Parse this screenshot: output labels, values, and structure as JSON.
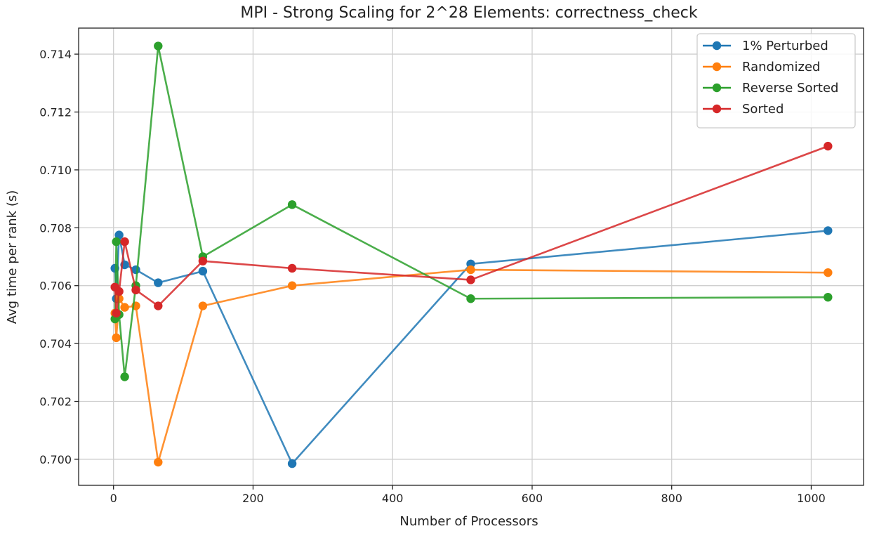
{
  "chart_data": {
    "type": "line",
    "title": "MPI - Strong Scaling for 2^28 Elements: correctness_check",
    "xlabel": "Number of Processors",
    "ylabel": "Avg time per rank (s)",
    "xlim": [
      -50,
      1075
    ],
    "ylim": [
      0.6991,
      0.7149
    ],
    "xticks": [
      0,
      200,
      400,
      600,
      800,
      1000
    ],
    "yticks": [
      0.7,
      0.702,
      0.704,
      0.706,
      0.708,
      0.71,
      0.712,
      0.714
    ],
    "grid": true,
    "legend_position": "top-right",
    "x": [
      2,
      4,
      8,
      16,
      32,
      64,
      128,
      256,
      512,
      1024
    ],
    "series": [
      {
        "name": "1% Perturbed",
        "color": "#1f77b4",
        "values": [
          0.7066,
          0.70555,
          0.70775,
          0.70672,
          0.70655,
          0.7061,
          0.7065,
          0.69985,
          0.70675,
          0.7079
        ]
      },
      {
        "name": "Randomized",
        "color": "#ff7f0e",
        "values": [
          0.70505,
          0.7042,
          0.70555,
          0.70525,
          0.7053,
          0.6999,
          0.7053,
          0.706,
          0.70655,
          0.70645
        ]
      },
      {
        "name": "Reverse Sorted",
        "color": "#2ca02c",
        "values": [
          0.70485,
          0.70752,
          0.705,
          0.70285,
          0.706,
          0.71428,
          0.707,
          0.7088,
          0.70555,
          0.7056
        ]
      },
      {
        "name": "Sorted",
        "color": "#d62728",
        "values": [
          0.70595,
          0.70505,
          0.7058,
          0.70752,
          0.70585,
          0.7053,
          0.70685,
          0.7066,
          0.7062,
          0.71082
        ]
      }
    ]
  }
}
